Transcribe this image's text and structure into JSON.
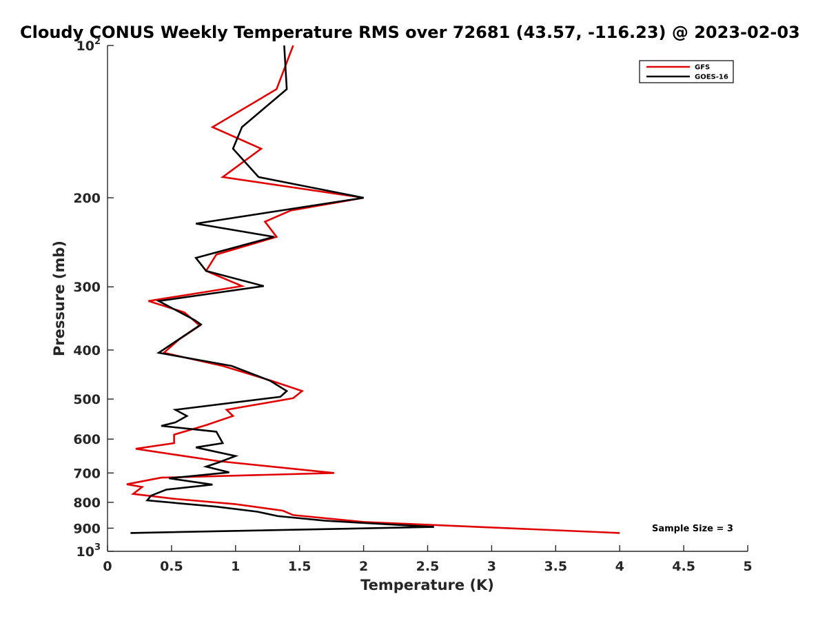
{
  "chart_data": {
    "type": "line",
    "title": "Cloudy CONUS Weekly Temperature RMS over 72681 (43.57, -116.23) @ 2023-02-03",
    "xlabel": "Temperature (K)",
    "ylabel": "Pressure (mb)",
    "xlim": [
      0,
      5
    ],
    "ylim": [
      100,
      1000
    ],
    "y_scale": "log",
    "y_reversed": true,
    "xticks": [
      {
        "value": 0,
        "label": "0"
      },
      {
        "value": 0.5,
        "label": "0.5"
      },
      {
        "value": 1,
        "label": "1"
      },
      {
        "value": 1.5,
        "label": "1.5"
      },
      {
        "value": 2,
        "label": "2"
      },
      {
        "value": 2.5,
        "label": "2.5"
      },
      {
        "value": 3,
        "label": "3"
      },
      {
        "value": 3.5,
        "label": "3.5"
      },
      {
        "value": 4,
        "label": "4"
      },
      {
        "value": 4.5,
        "label": "4.5"
      },
      {
        "value": 5,
        "label": "5"
      }
    ],
    "yticks": [
      {
        "value": 100,
        "label": "10",
        "sup": "2"
      },
      {
        "value": 200,
        "label": "200"
      },
      {
        "value": 300,
        "label": "300"
      },
      {
        "value": 400,
        "label": "400"
      },
      {
        "value": 500,
        "label": "500"
      },
      {
        "value": 600,
        "label": "600"
      },
      {
        "value": 700,
        "label": "700"
      },
      {
        "value": 800,
        "label": "800"
      },
      {
        "value": 900,
        "label": "900"
      },
      {
        "value": 1000,
        "label": "10",
        "sup": "3"
      }
    ],
    "legend": {
      "position": "top-right"
    },
    "annotation": "Sample Size = 3",
    "grid": false,
    "series": [
      {
        "name": "GFS",
        "color": "#e00000",
        "points": [
          [
            1.45,
            100
          ],
          [
            1.32,
            122
          ],
          [
            0.82,
            145
          ],
          [
            1.2,
            160
          ],
          [
            0.9,
            182
          ],
          [
            2.0,
            200
          ],
          [
            1.43,
            212
          ],
          [
            1.23,
            223
          ],
          [
            1.32,
            239
          ],
          [
            0.85,
            259
          ],
          [
            0.77,
            279
          ],
          [
            1.05,
            299
          ],
          [
            0.32,
            320
          ],
          [
            0.6,
            337
          ],
          [
            0.67,
            349
          ],
          [
            0.72,
            358
          ],
          [
            0.56,
            381
          ],
          [
            0.44,
            405
          ],
          [
            0.9,
            430
          ],
          [
            1.28,
            460
          ],
          [
            1.52,
            482
          ],
          [
            1.45,
            498
          ],
          [
            0.93,
            525
          ],
          [
            0.98,
            540
          ],
          [
            0.77,
            563
          ],
          [
            0.52,
            588
          ],
          [
            0.52,
            611
          ],
          [
            0.22,
            627
          ],
          [
            0.86,
            663
          ],
          [
            1.77,
            700
          ],
          [
            0.42,
            715
          ],
          [
            0.15,
            737
          ],
          [
            0.27,
            746
          ],
          [
            0.2,
            770
          ],
          [
            0.51,
            787
          ],
          [
            1.0,
            807
          ],
          [
            1.37,
            831
          ],
          [
            1.45,
            848
          ],
          [
            2.0,
            875
          ],
          [
            4.0,
            920
          ]
        ]
      },
      {
        "name": "GOES-16",
        "color": "#000000",
        "points": [
          [
            1.38,
            100
          ],
          [
            1.4,
            122
          ],
          [
            1.05,
            145
          ],
          [
            0.98,
            160
          ],
          [
            1.18,
            182
          ],
          [
            2.0,
            200
          ],
          [
            0.69,
            225
          ],
          [
            1.3,
            239
          ],
          [
            0.69,
            263
          ],
          [
            0.77,
            279
          ],
          [
            1.22,
            299
          ],
          [
            0.4,
            320
          ],
          [
            0.68,
            349
          ],
          [
            0.73,
            356
          ],
          [
            0.4,
            405
          ],
          [
            0.97,
            430
          ],
          [
            1.27,
            460
          ],
          [
            1.4,
            482
          ],
          [
            1.35,
            495
          ],
          [
            0.53,
            525
          ],
          [
            0.62,
            540
          ],
          [
            0.53,
            556
          ],
          [
            0.42,
            565
          ],
          [
            0.85,
            580
          ],
          [
            0.9,
            611
          ],
          [
            0.69,
            623
          ],
          [
            1.0,
            648
          ],
          [
            0.87,
            667
          ],
          [
            0.77,
            680
          ],
          [
            0.95,
            698
          ],
          [
            0.48,
            717
          ],
          [
            0.82,
            738
          ],
          [
            0.46,
            755
          ],
          [
            0.34,
            776
          ],
          [
            0.31,
            793
          ],
          [
            0.85,
            816
          ],
          [
            1.17,
            835
          ],
          [
            1.33,
            852
          ],
          [
            1.7,
            870
          ],
          [
            2.55,
            895
          ],
          [
            0.18,
            920
          ]
        ]
      }
    ]
  }
}
